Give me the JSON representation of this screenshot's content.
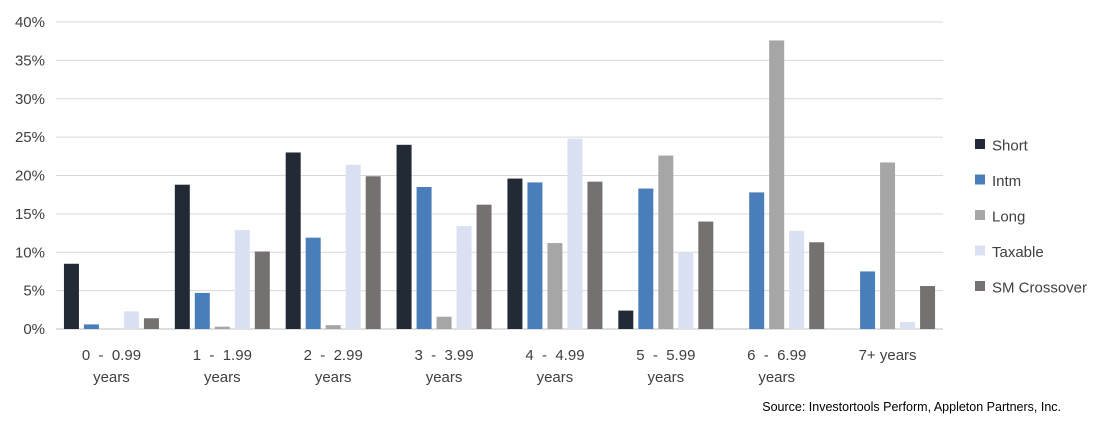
{
  "chart_data": {
    "type": "bar",
    "categories": [
      [
        "0  -  0.99",
        "years"
      ],
      [
        "1  -  1.99",
        "years"
      ],
      [
        "2  -  2.99",
        "years"
      ],
      [
        "3  -  3.99",
        "years"
      ],
      [
        "4  -  4.99",
        "years"
      ],
      [
        "5  -  5.99",
        "years"
      ],
      [
        "6  -  6.99",
        "years"
      ],
      [
        "7+ years"
      ]
    ],
    "series": [
      {
        "name": "Short",
        "color": "#222a35",
        "values": [
          8.5,
          18.8,
          23.0,
          24.0,
          19.6,
          2.4,
          0,
          0
        ]
      },
      {
        "name": "Intm",
        "color": "#4a7ebb",
        "values": [
          0.6,
          4.7,
          11.9,
          18.5,
          19.1,
          18.3,
          17.8,
          7.5
        ]
      },
      {
        "name": "Long",
        "color": "#a6a6a6",
        "values": [
          0,
          0.3,
          0.5,
          1.6,
          11.2,
          22.6,
          37.6,
          21.7
        ]
      },
      {
        "name": "Taxable",
        "color": "#d9e1f2",
        "values": [
          2.3,
          12.9,
          21.4,
          13.4,
          24.8,
          10.0,
          12.8,
          0.9
        ]
      },
      {
        "name": "SM Crossover",
        "color": "#767171",
        "values": [
          1.4,
          10.1,
          19.9,
          16.2,
          19.2,
          14.0,
          11.3,
          5.6
        ]
      }
    ],
    "ylim": [
      0,
      40
    ],
    "yticks": [
      "0%",
      "5%",
      "10%",
      "15%",
      "20%",
      "25%",
      "30%",
      "35%",
      "40%"
    ],
    "grid": true,
    "legend_position": "right",
    "title": "",
    "xlabel": "",
    "ylabel": ""
  },
  "source": "Source: Investortools Perform, Appleton Partners, Inc."
}
